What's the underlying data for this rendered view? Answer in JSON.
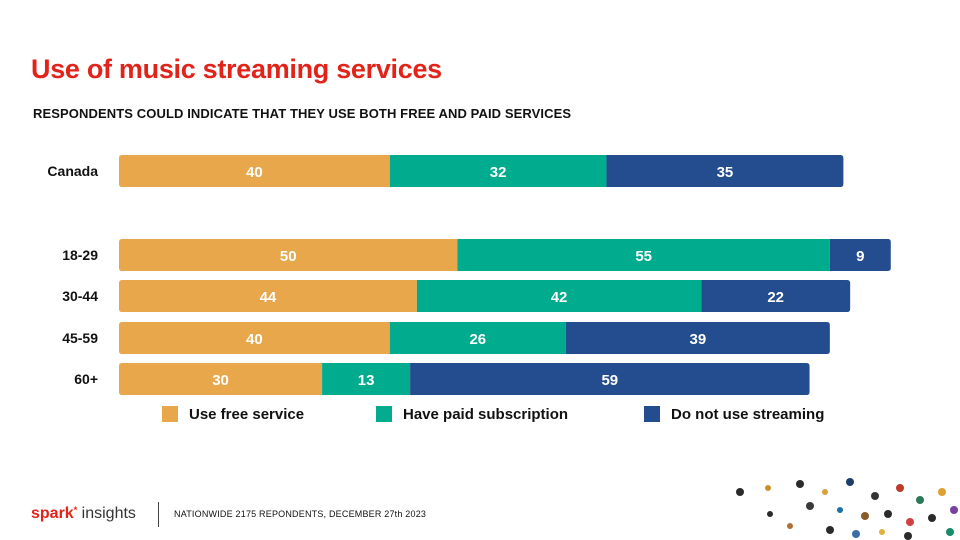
{
  "title": "Use of music streaming services",
  "subtitle": "RESPONDENTS COULD INDICATE THAT THEY USE BOTH FREE AND PAID SERVICES",
  "footer": {
    "logo_brand": "spark",
    "logo_insights": "insights",
    "note": "NATIONWIDE 2175 REPONDENTS, DECEMBER 27th 2023"
  },
  "chart_data": {
    "type": "bar",
    "orientation": "horizontal",
    "stacked": true,
    "categories": [
      "Canada",
      "18-29",
      "30-44",
      "45-59",
      "60+"
    ],
    "series": [
      {
        "name": "Use free service",
        "color": "#e8a74a",
        "values": [
          40,
          50,
          44,
          40,
          30
        ]
      },
      {
        "name": "Have paid subscription",
        "color": "#00ab8e",
        "values": [
          32,
          55,
          42,
          26,
          13
        ]
      },
      {
        "name": "Do not use streaming",
        "color": "#234d8e",
        "values": [
          35,
          9,
          22,
          39,
          59
        ]
      }
    ],
    "data_labels": true,
    "legend": "bottom",
    "grid": false
  }
}
